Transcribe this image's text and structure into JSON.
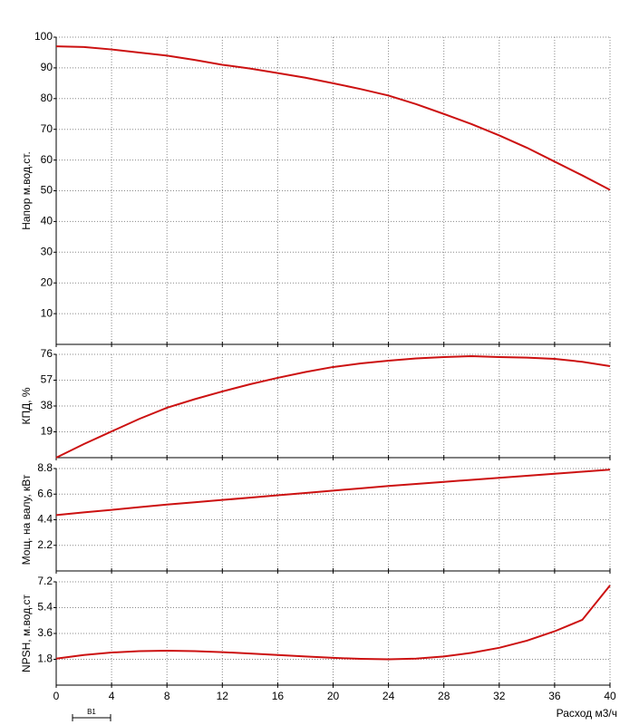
{
  "chart_data": [
    {
      "type": "line",
      "ylabel": "Напор м.вод.ст.",
      "x": [
        0,
        2,
        4,
        6,
        8,
        10,
        12,
        14,
        16,
        18,
        20,
        22,
        24,
        26,
        28,
        30,
        32,
        34,
        36,
        38,
        40
      ],
      "series": [
        {
          "color": "#cc1111",
          "values": [
            97,
            96.8,
            96,
            95,
            94,
            92.6,
            91,
            89.8,
            88.3,
            86.8,
            85,
            83.1,
            81,
            78.2,
            75,
            71.7,
            68,
            64,
            59.5,
            55,
            50.3
          ]
        }
      ],
      "xlim": [
        0,
        40
      ],
      "ylim": [
        0,
        100
      ],
      "yticks": [
        10,
        20,
        30,
        40,
        50,
        60,
        70,
        80,
        90,
        100
      ],
      "grid": true
    },
    {
      "type": "line",
      "ylabel": "КПД, %",
      "x": [
        0,
        2,
        4,
        6,
        8,
        10,
        12,
        14,
        16,
        18,
        20,
        22,
        24,
        26,
        28,
        30,
        32,
        34,
        36,
        38,
        40
      ],
      "series": [
        {
          "color": "#cc1111",
          "values": [
            0,
            10,
            19.3,
            28.5,
            36.7,
            43,
            48.7,
            54,
            58.7,
            63,
            66.7,
            69.3,
            71.3,
            73,
            74,
            74.7,
            74,
            73.6,
            72.7,
            70.5,
            67.3
          ]
        }
      ],
      "xlim": [
        0,
        40
      ],
      "ylim": [
        0,
        76
      ],
      "yticks": [
        19,
        38,
        57,
        76
      ],
      "grid": true
    },
    {
      "type": "line",
      "ylabel": "Мощ. на валу, кВт",
      "x": [
        0,
        2,
        4,
        6,
        8,
        10,
        12,
        14,
        16,
        18,
        20,
        22,
        24,
        26,
        28,
        30,
        32,
        34,
        36,
        38,
        40
      ],
      "series": [
        {
          "color": "#cc1111",
          "values": [
            4.8,
            5.03,
            5.25,
            5.48,
            5.7,
            5.9,
            6.1,
            6.3,
            6.5,
            6.7,
            6.9,
            7.1,
            7.3,
            7.48,
            7.65,
            7.83,
            8.0,
            8.18,
            8.35,
            8.53,
            8.7
          ]
        }
      ],
      "xlim": [
        0,
        40
      ],
      "ylim": [
        0,
        8.8
      ],
      "yticks": [
        2.2,
        4.4,
        6.6,
        8.8
      ],
      "grid": true
    },
    {
      "type": "line",
      "ylabel": "NPSH, м.вод.ст",
      "xlabel": "Расход м3/ч",
      "x": [
        0,
        2,
        4,
        6,
        8,
        10,
        12,
        14,
        16,
        18,
        20,
        22,
        24,
        26,
        28,
        30,
        32,
        34,
        36,
        38,
        40
      ],
      "series": [
        {
          "color": "#cc1111",
          "values": [
            1.85,
            2.1,
            2.27,
            2.37,
            2.4,
            2.37,
            2.3,
            2.2,
            2.1,
            2.0,
            1.9,
            1.83,
            1.8,
            1.85,
            2.0,
            2.25,
            2.6,
            3.1,
            3.75,
            4.55,
            6.95
          ]
        }
      ],
      "xlim": [
        0,
        40
      ],
      "ylim": [
        0,
        7.2
      ],
      "yticks": [
        1.8,
        3.6,
        5.4,
        7.2
      ],
      "xticks": [
        0,
        4,
        8,
        12,
        16,
        20,
        24,
        28,
        32,
        36,
        40
      ],
      "grid": true,
      "annotation": "В1"
    }
  ]
}
